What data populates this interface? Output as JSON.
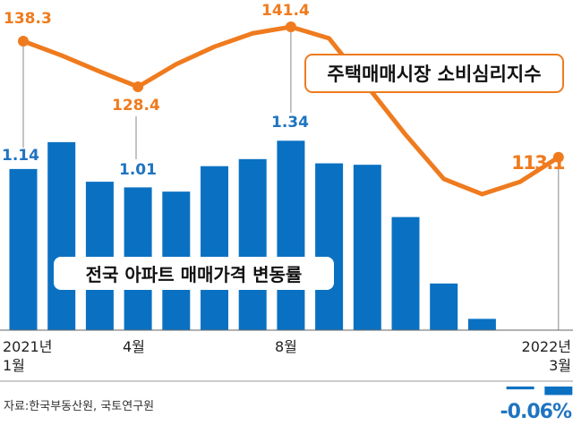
{
  "chart_data": [
    {
      "type": "bar",
      "title": "전국 아파트 매매가격 변동률",
      "x": [
        "2021-01",
        "2021-02",
        "2021-03",
        "2021-04",
        "2021-05",
        "2021-06",
        "2021-07",
        "2021-08",
        "2021-09",
        "2021-10",
        "2021-11",
        "2021-12",
        "2022-01",
        "2022-02",
        "2022-03"
      ],
      "values": [
        1.14,
        1.33,
        1.05,
        1.01,
        0.98,
        1.16,
        1.21,
        1.34,
        1.18,
        1.17,
        0.8,
        0.33,
        0.08,
        -0.02,
        -0.06
      ],
      "unit": "%",
      "data_labels": {
        "2021-01": "1.14",
        "2021-04": "1.01",
        "2021-08": "1.34",
        "2022-03": "-0.06%"
      },
      "color": "#0a71c2"
    },
    {
      "type": "line",
      "title": "주택매매시장 소비심리지수",
      "x": [
        "2021-01",
        "2021-02",
        "2021-03",
        "2021-04",
        "2021-05",
        "2021-06",
        "2021-07",
        "2021-08",
        "2021-09",
        "2021-10",
        "2021-11",
        "2021-12",
        "2022-01",
        "2022-02",
        "2022-03"
      ],
      "values": [
        138.3,
        135.2,
        131.7,
        128.4,
        133.3,
        137.1,
        140.0,
        141.4,
        138.9,
        128.5,
        118.0,
        108.4,
        105.1,
        107.8,
        113.1
      ],
      "data_labels": {
        "2021-01": "138.3",
        "2021-04": "128.4",
        "2021-08": "141.4",
        "2022-03": "113.1"
      },
      "color": "#ef7b1e"
    }
  ],
  "x_tick_labels": [
    {
      "line1": "2021년",
      "line2": "1월"
    },
    {
      "line1": "4월"
    },
    {
      "line1": "8월"
    },
    {
      "line1": "2022년",
      "line2": "3월"
    }
  ],
  "source": "자료:한국부동산원, 국토연구원"
}
